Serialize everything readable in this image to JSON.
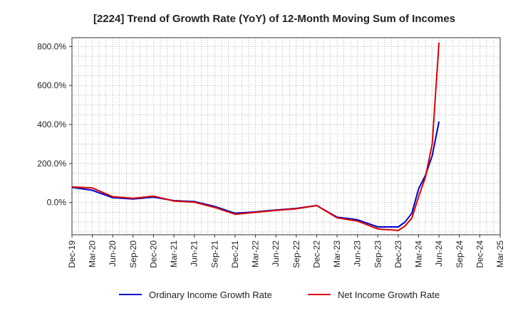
{
  "chart_data": {
    "type": "line",
    "title": "[2224]  Trend of Growth Rate (YoY) of 12-Month Moving Sum of Incomes",
    "xlabel": "",
    "ylabel": "",
    "x_ticks": [
      "Dec-19",
      "Mar-20",
      "Jun-20",
      "Sep-20",
      "Dec-20",
      "Mar-21",
      "Jun-21",
      "Sep-21",
      "Dec-21",
      "Mar-22",
      "Jun-22",
      "Sep-22",
      "Dec-22",
      "Mar-23",
      "Jun-23",
      "Sep-23",
      "Dec-23",
      "Mar-24",
      "Jun-24",
      "Sep-24",
      "Dec-24",
      "Mar-25"
    ],
    "y_ticks": [
      "0.0%",
      "200.0%",
      "400.0%",
      "600.0%",
      "800.0%"
    ],
    "ylim": [
      -165,
      845
    ],
    "grid": true,
    "legend_position": "bottom",
    "series": [
      {
        "name": "Ordinary Income Growth Rate",
        "color": "#0000cc",
        "points": [
          [
            "Dec-19",
            78
          ],
          [
            "Mar-20",
            63
          ],
          [
            "Jun-20",
            25
          ],
          [
            "Sep-20",
            18
          ],
          [
            "Dec-20",
            28
          ],
          [
            "Mar-21",
            10
          ],
          [
            "Jun-21",
            5
          ],
          [
            "Sep-21",
            -20
          ],
          [
            "Dec-21",
            -55
          ],
          [
            "Mar-22",
            -48
          ],
          [
            "Jun-22",
            -38
          ],
          [
            "Sep-22",
            -30
          ],
          [
            "Dec-22",
            -15
          ],
          [
            "Mar-23",
            -75
          ],
          [
            "Jun-23",
            -88
          ],
          [
            "Sep-23",
            -125
          ],
          [
            "Oct-23",
            -125
          ],
          [
            "Nov-23",
            -125
          ],
          [
            "Dec-23",
            -125
          ],
          [
            "Jan-24",
            -100
          ],
          [
            "Feb-24",
            -55
          ],
          [
            "Mar-24",
            70
          ],
          [
            "Apr-24",
            140
          ],
          [
            "May-24",
            240
          ],
          [
            "Jun-24",
            415
          ]
        ]
      },
      {
        "name": "Net Income Growth Rate",
        "color": "#dd0000",
        "points": [
          [
            "Dec-19",
            80
          ],
          [
            "Mar-20",
            75
          ],
          [
            "Jun-20",
            30
          ],
          [
            "Sep-20",
            22
          ],
          [
            "Dec-20",
            33
          ],
          [
            "Mar-21",
            8
          ],
          [
            "Jun-21",
            2
          ],
          [
            "Sep-21",
            -25
          ],
          [
            "Dec-21",
            -60
          ],
          [
            "Mar-22",
            -50
          ],
          [
            "Jun-22",
            -40
          ],
          [
            "Sep-22",
            -32
          ],
          [
            "Dec-22",
            -15
          ],
          [
            "Mar-23",
            -78
          ],
          [
            "Jun-23",
            -95
          ],
          [
            "Sep-23",
            -135
          ],
          [
            "Oct-23",
            -138
          ],
          [
            "Nov-23",
            -140
          ],
          [
            "Dec-23",
            -143
          ],
          [
            "Jan-24",
            -120
          ],
          [
            "Feb-24",
            -80
          ],
          [
            "Mar-24",
            30
          ],
          [
            "Apr-24",
            130
          ],
          [
            "May-24",
            300
          ],
          [
            "Jun-24",
            820
          ]
        ]
      }
    ]
  }
}
